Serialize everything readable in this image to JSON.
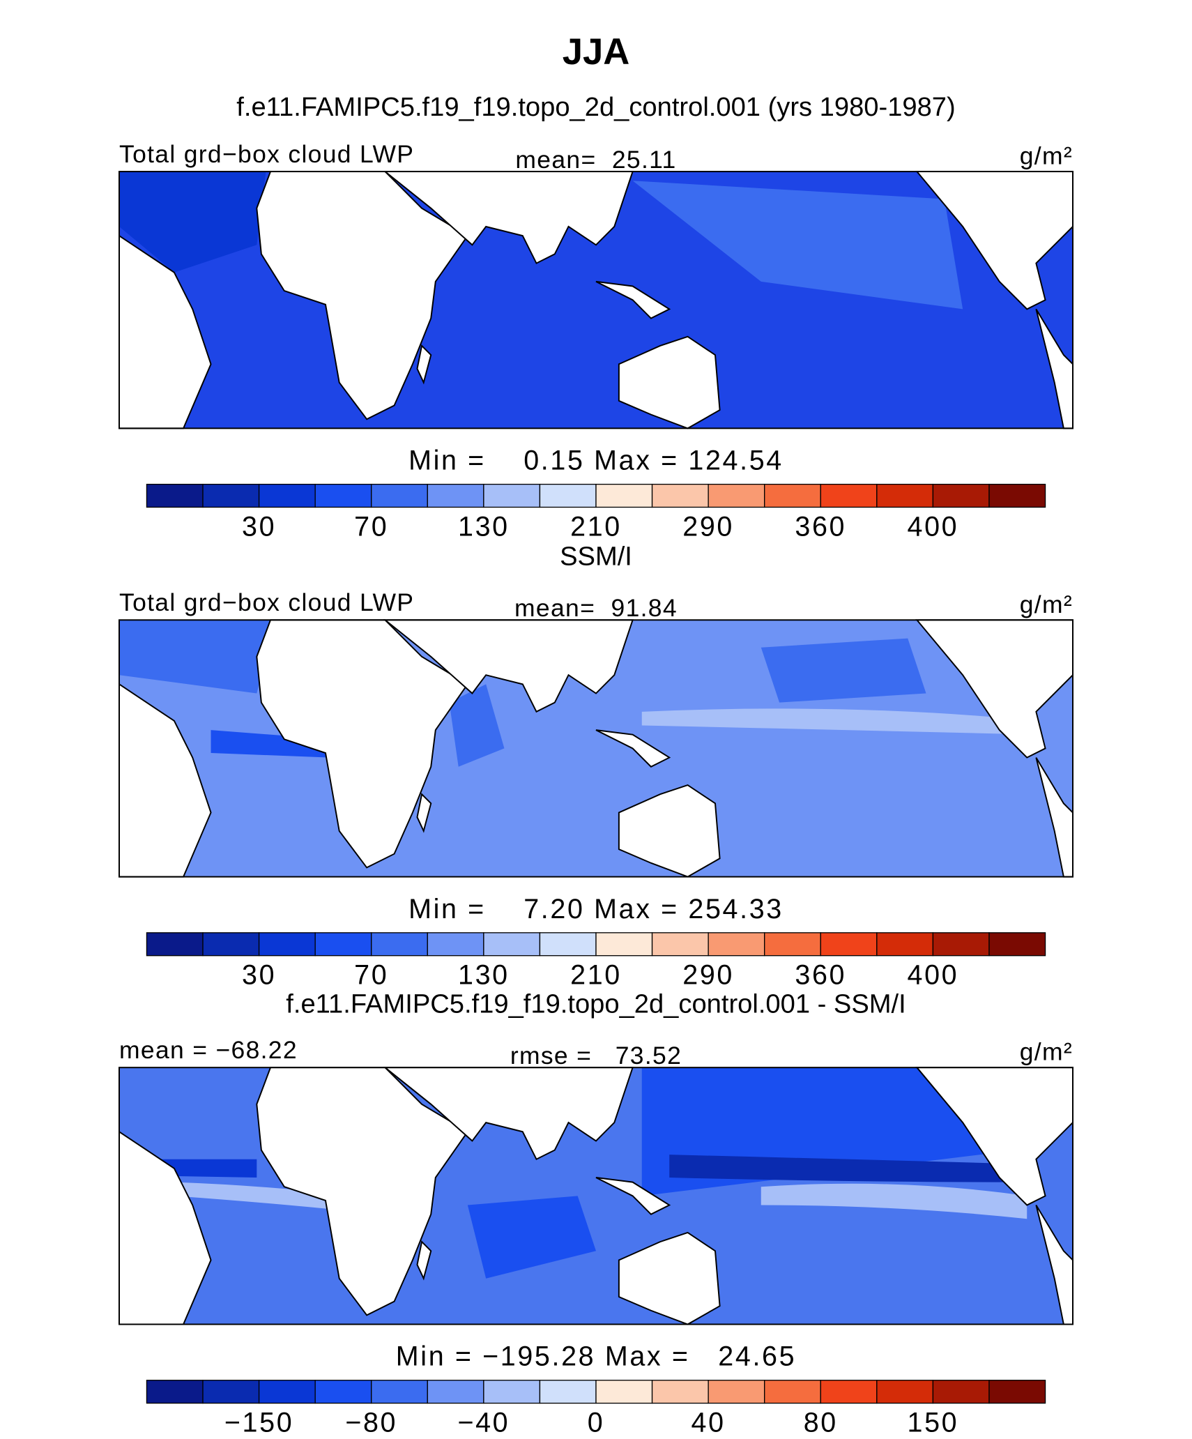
{
  "title": "JJA",
  "panels": [
    {
      "heading": "f.e11.FAMIPC5.f19_f19.topo_2d_control.001 (yrs 1980-1987)",
      "left": "Total grd−box cloud LWP",
      "center": "mean=  25.11",
      "units": "g/m²",
      "minmax": "Min =    0.15 Max = 124.54",
      "colorbar": {
        "colors": [
          "#0a1a8a",
          "#0a2bb0",
          "#0a37d5",
          "#1a4ff0",
          "#3b6cf0",
          "#6e93f5",
          "#a7bff8",
          "#d0e0fb",
          "#fde9d8",
          "#fbc6aa",
          "#f99a72",
          "#f56d3e",
          "#f0431a",
          "#d42c08",
          "#a81a05",
          "#7a0a02"
        ],
        "labels": [
          30,
          70,
          130,
          210,
          290,
          360,
          400
        ]
      }
    },
    {
      "heading": "SSM/I",
      "left": "Total grd−box cloud LWP",
      "center": "mean=  91.84",
      "units": "g/m²",
      "minmax": "Min =    7.20 Max = 254.33",
      "colorbar": {
        "colors": [
          "#0a1a8a",
          "#0a2bb0",
          "#0a37d5",
          "#1a4ff0",
          "#3b6cf0",
          "#6e93f5",
          "#a7bff8",
          "#d0e0fb",
          "#fde9d8",
          "#fbc6aa",
          "#f99a72",
          "#f56d3e",
          "#f0431a",
          "#d42c08",
          "#a81a05",
          "#7a0a02"
        ],
        "labels": [
          30,
          70,
          130,
          210,
          290,
          360,
          400
        ]
      }
    },
    {
      "heading": "f.e11.FAMIPC5.f19_f19.topo_2d_control.001 - SSM/I",
      "left": "mean = −68.22",
      "center": "rmse =   73.52",
      "units": "g/m²",
      "minmax": "Min = −195.28 Max =   24.65",
      "colorbar": {
        "colors": [
          "#0a1a8a",
          "#0a2bb0",
          "#0a37d5",
          "#1a4ff0",
          "#3b6cf0",
          "#6e93f5",
          "#a7bff8",
          "#d0e0fb",
          "#fde9d8",
          "#fbc6aa",
          "#f99a72",
          "#f56d3e",
          "#f0431a",
          "#d42c08",
          "#a81a05",
          "#7a0a02"
        ],
        "labels": [
          {
            "value": -150,
            "label": "−150"
          },
          {
            "value": -80,
            "label": "−80"
          },
          {
            "value": -40,
            "label": "−40"
          },
          0,
          40,
          80,
          {
            "value": 150,
            "label": "150"
          }
        ]
      }
    }
  ]
}
